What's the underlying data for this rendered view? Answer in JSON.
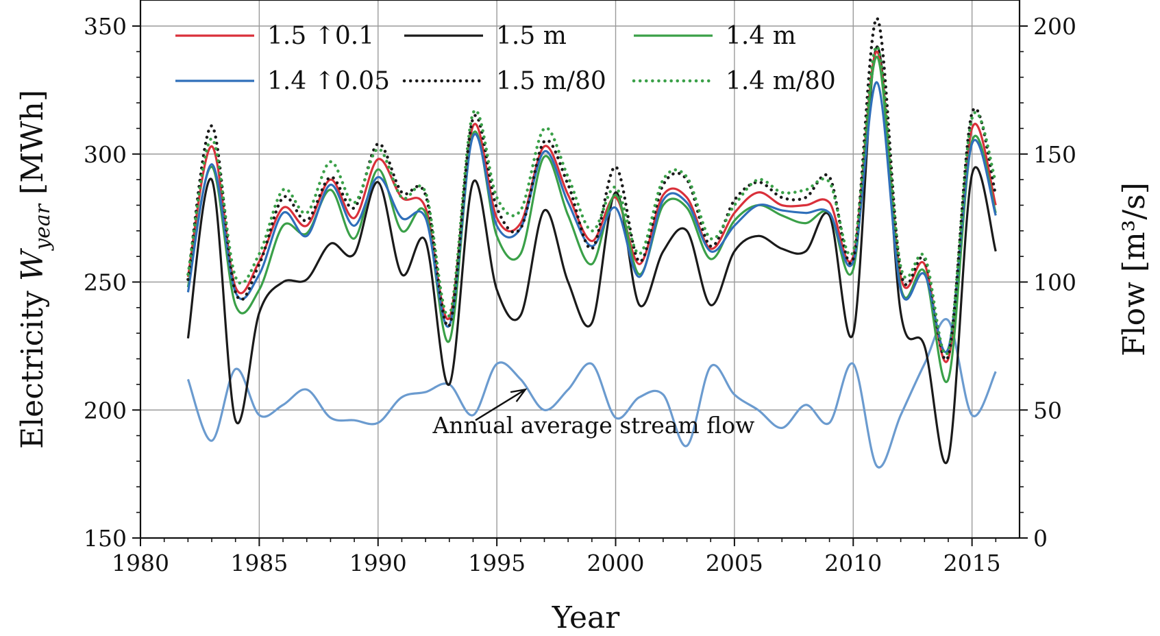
{
  "chart_data": {
    "type": "line",
    "title": "",
    "xlabel": "Year",
    "ylabel_prefix": "Electricity ",
    "ylabel_var": "W",
    "ylabel_sub": "year",
    "ylabel_unit": "[MWh]",
    "y2label": "Flow  [m³/s]",
    "xlim": [
      1980,
      2017
    ],
    "ylim": [
      150,
      350
    ],
    "y2lim": [
      0,
      200
    ],
    "xticks": [
      1980,
      1985,
      1990,
      1995,
      2000,
      2005,
      2010,
      2015
    ],
    "yticks": [
      150,
      200,
      250,
      300,
      350
    ],
    "y2ticks": [
      0,
      50,
      100,
      150,
      200
    ],
    "grid": true,
    "legend_position": "top",
    "x": [
      1982,
      1983,
      1984,
      1985,
      1986,
      1987,
      1988,
      1989,
      1990,
      1991,
      1992,
      1993,
      1994,
      1995,
      1996,
      1997,
      1998,
      1999,
      2000,
      2001,
      2002,
      2003,
      2004,
      2005,
      2006,
      2007,
      2008,
      2009,
      2010,
      2011,
      2012,
      2013,
      2014,
      2015,
      2016
    ],
    "series": [
      {
        "name": "1.5 ↑0.1",
        "color": "#d9303a",
        "dash": "solid",
        "values": [
          252,
          303,
          248,
          258,
          279,
          272,
          290,
          275,
          298,
          283,
          279,
          236,
          311,
          275,
          273,
          303,
          284,
          266,
          283,
          257,
          284,
          283,
          263,
          277,
          285,
          280,
          280,
          281,
          260,
          340,
          252,
          257,
          220,
          310,
          280
        ]
      },
      {
        "name": "1.5 m",
        "color": "#1a1a1a",
        "dash": "solid",
        "values": [
          228,
          290,
          196,
          238,
          250,
          251,
          265,
          261,
          289,
          253,
          266,
          210,
          289,
          247,
          237,
          278,
          250,
          234,
          285,
          241,
          262,
          270,
          241,
          262,
          268,
          263,
          262,
          276,
          230,
          342,
          238,
          225,
          181,
          292,
          262
        ]
      },
      {
        "name": "1.4 m",
        "color": "#3aa048",
        "dash": "solid",
        "values": [
          248,
          295,
          241,
          247,
          272,
          269,
          286,
          267,
          294,
          270,
          277,
          227,
          308,
          268,
          261,
          299,
          276,
          257,
          284,
          253,
          280,
          279,
          259,
          274,
          280,
          276,
          273,
          277,
          255,
          338,
          248,
          254,
          212,
          305,
          277
        ]
      },
      {
        "name": "1.4 ↑0.05",
        "color": "#2f6fba",
        "dash": "solid",
        "values": [
          246,
          296,
          246,
          253,
          277,
          268,
          288,
          272,
          291,
          275,
          275,
          233,
          307,
          272,
          271,
          301,
          281,
          264,
          279,
          252,
          282,
          281,
          262,
          272,
          280,
          278,
          277,
          277,
          258,
          328,
          247,
          253,
          224,
          304,
          276
        ]
      },
      {
        "name": "1.5 m/80",
        "color": "#1a1a1a",
        "dash": "dot",
        "values": [
          251,
          311,
          246,
          257,
          283,
          274,
          291,
          279,
          304,
          285,
          284,
          233,
          314,
          279,
          271,
          305,
          288,
          263,
          295,
          258,
          288,
          290,
          264,
          282,
          289,
          283,
          283,
          291,
          259,
          353,
          254,
          259,
          221,
          316,
          284
        ]
      },
      {
        "name": "1.4 m/80",
        "color": "#3aa048",
        "dash": "dot",
        "values": [
          253,
          306,
          252,
          261,
          286,
          277,
          297,
          281,
          302,
          283,
          285,
          237,
          316,
          283,
          278,
          310,
          291,
          270,
          287,
          261,
          290,
          291,
          267,
          280,
          290,
          285,
          286,
          289,
          262,
          342,
          256,
          260,
          223,
          314,
          289
        ]
      }
    ],
    "flow_series": {
      "name": "Annual average stream flow",
      "color": "#6b9bcf",
      "axis": "right",
      "values": [
        62,
        38,
        66,
        48,
        52,
        58,
        47,
        46,
        45,
        55,
        57,
        60,
        48,
        68,
        62,
        50,
        58,
        68,
        47,
        55,
        56,
        36,
        67,
        56,
        50,
        43,
        52,
        45,
        68,
        28,
        48,
        68,
        85,
        48,
        65
      ]
    },
    "annotation": {
      "text": "Annual average stream flow",
      "x": 1992.3,
      "y": 191,
      "arrow_from": [
        1994.1,
        196
      ],
      "arrow_to": [
        1996.2,
        208
      ]
    }
  }
}
